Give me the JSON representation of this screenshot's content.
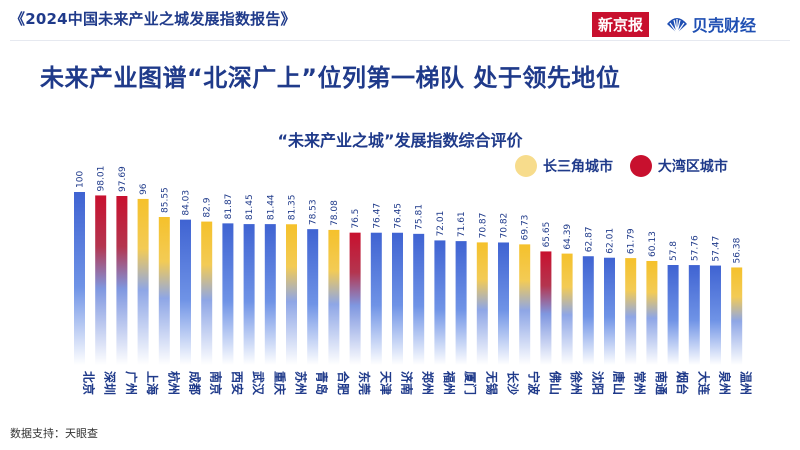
{
  "header": {
    "report_title": "《2024中国未来产业之城发展指数报告》",
    "brand_left": "新京报",
    "brand_right": "贝壳财经"
  },
  "headline": "未来产业图谱“北深广上”位列第一梯队 处于领先地位",
  "source": "数据支持：天眼查",
  "colors": {
    "default_bar": "#4169d6",
    "yangtze_bar": "#f5c431",
    "bay_bar": "#c8102e",
    "yangtze_legend": "#f7dc8c",
    "bay_legend": "#c8102e",
    "title_color": "#1f3a8a"
  },
  "legend": [
    {
      "label": "长三角城市",
      "color": "#f7dc8c"
    },
    {
      "label": "大湾区城市",
      "color": "#c8102e"
    }
  ],
  "chart_data": {
    "type": "bar",
    "title": "“未来产业之城”发展指数综合评价",
    "categories": [
      "北京",
      "深圳",
      "广州",
      "上海",
      "杭州",
      "成都",
      "南京",
      "西安",
      "武汉",
      "重庆",
      "苏州",
      "青岛",
      "合肥",
      "东莞",
      "天津",
      "济南",
      "郑州",
      "福州",
      "厦门",
      "无锡",
      "长沙",
      "宁波",
      "佛山",
      "徐州",
      "沈阳",
      "唐山",
      "常州",
      "南通",
      "烟台",
      "大连",
      "泉州",
      "温州"
    ],
    "values": [
      100,
      98.01,
      97.69,
      96,
      85.55,
      84.03,
      82.9,
      81.87,
      81.45,
      81.44,
      81.35,
      78.53,
      78.08,
      76.5,
      76.47,
      76.45,
      75.81,
      72.01,
      71.61,
      70.87,
      70.82,
      69.73,
      65.65,
      64.39,
      62.87,
      62.01,
      61.79,
      60.13,
      57.8,
      57.76,
      57.47,
      56.38
    ],
    "region": [
      "other",
      "bay",
      "bay",
      "yangtze",
      "yangtze",
      "other",
      "yangtze",
      "other",
      "other",
      "other",
      "yangtze",
      "other",
      "yangtze",
      "bay",
      "other",
      "other",
      "other",
      "other",
      "other",
      "yangtze",
      "other",
      "yangtze",
      "bay",
      "yangtze",
      "other",
      "other",
      "yangtze",
      "yangtze",
      "other",
      "other",
      "other",
      "yangtze"
    ],
    "labels": [
      "100",
      "98.01",
      "97.69",
      "96",
      "85.55",
      "84.03",
      "82.9",
      "81.87",
      "81.45",
      "81.44",
      "81.35",
      "78.53",
      "78.08",
      "76.5",
      "76.47",
      "76.45",
      "75.81",
      "72.01",
      "71.61",
      "70.87",
      "70.82",
      "69.73",
      "65.65",
      "64.39",
      "62.87",
      "62.01",
      "61.79",
      "60.13",
      "57.8",
      "57.76",
      "57.47",
      "56.38"
    ],
    "ylim": [
      0,
      100
    ]
  }
}
